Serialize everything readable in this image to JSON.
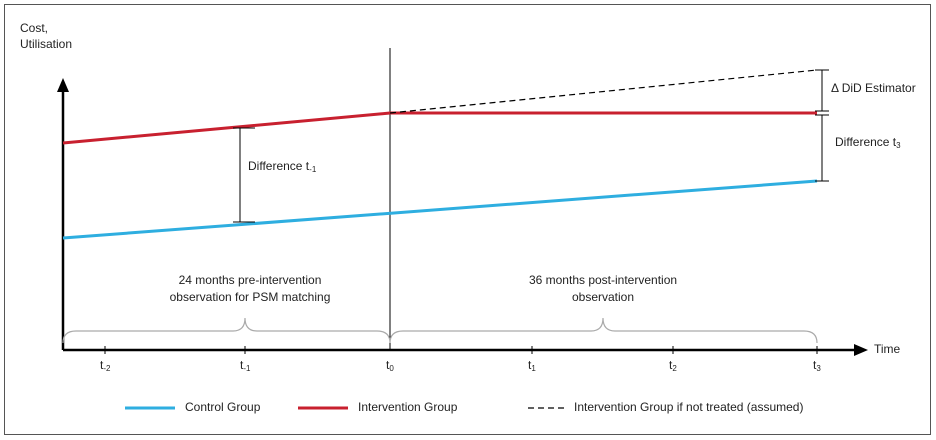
{
  "y_axis_label": [
    "Cost,",
    "Utilisation"
  ],
  "x_axis_label": "Time",
  "ticks": [
    {
      "base": "t",
      "sub": "-2"
    },
    {
      "base": "t",
      "sub": "-1"
    },
    {
      "base": "t",
      "sub": "0"
    },
    {
      "base": "t",
      "sub": "1"
    },
    {
      "base": "t",
      "sub": "2"
    },
    {
      "base": "t",
      "sub": "3"
    }
  ],
  "annotations": {
    "difference_pre": {
      "base": "Difference t",
      "sub": "-1"
    },
    "difference_post": {
      "base": "Difference t",
      "sub": "3"
    },
    "did_estimator": "Δ  DiD Estimator",
    "pre_period": [
      "24 months pre-intervention",
      "observation for PSM matching"
    ],
    "post_period": [
      "36 months post-intervention",
      "observation"
    ]
  },
  "legend": [
    "Control Group",
    "Intervention Group",
    "Intervention Group if not treated (assumed)"
  ]
}
